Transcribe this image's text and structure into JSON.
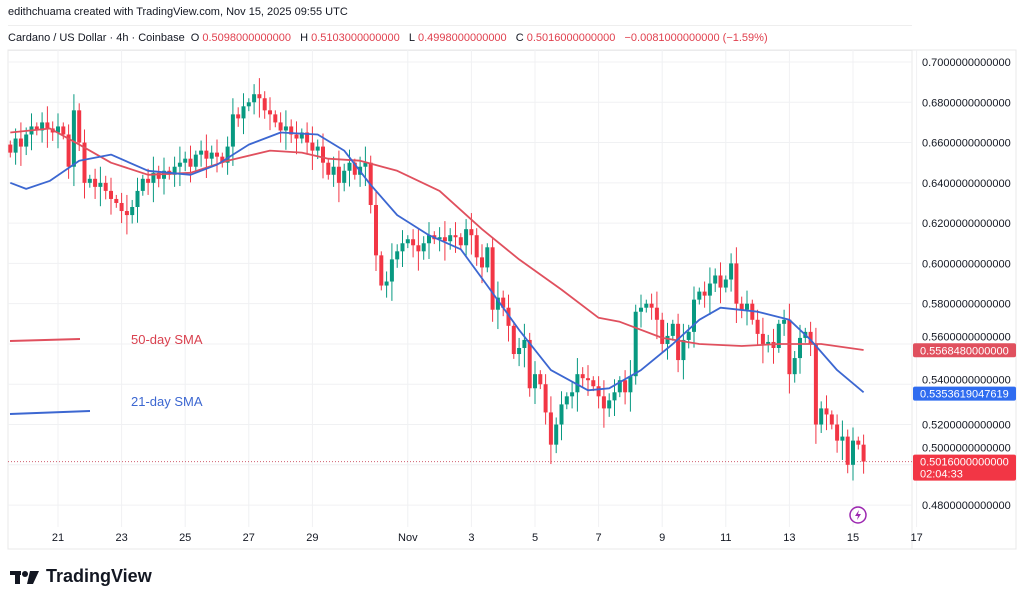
{
  "header": {
    "credit": "edithchuama created with TradingView.com, Nov 15, 2025 09:55 UTC",
    "symbol": "Cardano / US Dollar · 4h · Coinbase",
    "open_label": "O",
    "open": "0.5098000000000",
    "high_label": "H",
    "high": "0.5103000000000",
    "low_label": "L",
    "low": "0.4998000000000",
    "close_label": "C",
    "close": "0.5016000000000",
    "change": "−0.0081000000000 (−1.59%)"
  },
  "legend": {
    "sma50": "50-day SMA",
    "sma21": "21-day SMA"
  },
  "footer": {
    "brand": "TradingView"
  },
  "colors": {
    "up": "#089981",
    "down": "#f23645",
    "sma50": "#e0505e",
    "sma21": "#3c67d1",
    "last_price": "#f23645",
    "sma21_tag": "#2f6cf0"
  },
  "price_tags": {
    "sma50": "0.5568480000000",
    "sma21": "0.5353619047619",
    "last": "0.5016000000000",
    "countdown": "02:04:33"
  },
  "chart_data": {
    "type": "candlestick",
    "interval": "4h",
    "ylim": [
      0.47,
      0.705
    ],
    "y_ticks": [
      "0.7000000000000",
      "0.6800000000000",
      "0.6600000000000",
      "0.6400000000000",
      "0.6200000000000",
      "0.6000000000000",
      "0.5800000000000",
      "0.5600000000000",
      "0.5400000000000",
      "0.5200000000000",
      "0.5000000000000",
      "0.4800000000000"
    ],
    "x_ticks": [
      {
        "label": "21",
        "date": "2025-10-21"
      },
      {
        "label": "23",
        "date": "2025-10-23"
      },
      {
        "label": "25",
        "date": "2025-10-25"
      },
      {
        "label": "27",
        "date": "2025-10-27"
      },
      {
        "label": "29",
        "date": "2025-10-29"
      },
      {
        "label": "Nov",
        "date": "2025-11-01"
      },
      {
        "label": "3",
        "date": "2025-11-03"
      },
      {
        "label": "5",
        "date": "2025-11-05"
      },
      {
        "label": "7",
        "date": "2025-11-07"
      },
      {
        "label": "9",
        "date": "2025-11-09"
      },
      {
        "label": "11",
        "date": "2025-11-11"
      },
      {
        "label": "13",
        "date": "2025-11-13"
      },
      {
        "label": "15",
        "date": "2025-11-15"
      },
      {
        "label": "17",
        "date": "2025-11-17"
      }
    ],
    "first_candle": "2025-10-19T12:00",
    "closes": [
      0.655,
      0.662,
      0.658,
      0.664,
      0.668,
      0.666,
      0.67,
      0.667,
      0.665,
      0.668,
      0.664,
      0.648,
      0.676,
      0.66,
      0.64,
      0.642,
      0.638,
      0.64,
      0.636,
      0.632,
      0.63,
      0.626,
      0.624,
      0.628,
      0.636,
      0.642,
      0.64,
      0.645,
      0.642,
      0.646,
      0.644,
      0.648,
      0.65,
      0.652,
      0.648,
      0.654,
      0.656,
      0.652,
      0.655,
      0.653,
      0.65,
      0.658,
      0.674,
      0.672,
      0.678,
      0.68,
      0.684,
      0.682,
      0.676,
      0.674,
      0.67,
      0.666,
      0.668,
      0.664,
      0.662,
      0.665,
      0.66,
      0.656,
      0.658,
      0.65,
      0.644,
      0.648,
      0.64,
      0.646,
      0.65,
      0.644,
      0.648,
      0.65,
      0.629,
      0.604,
      0.589,
      0.591,
      0.602,
      0.606,
      0.61,
      0.612,
      0.609,
      0.606,
      0.61,
      0.614,
      0.612,
      0.613,
      0.611,
      0.614,
      0.613,
      0.609,
      0.617,
      0.614,
      0.603,
      0.598,
      0.608,
      0.577,
      0.583,
      0.578,
      0.569,
      0.555,
      0.558,
      0.562,
      0.538,
      0.545,
      0.54,
      0.526,
      0.51,
      0.52,
      0.53,
      0.534,
      0.536,
      0.545,
      0.543,
      0.542,
      0.539,
      0.534,
      0.528,
      0.532,
      0.536,
      0.542,
      0.536,
      0.544,
      0.576,
      0.578,
      0.58,
      0.578,
      0.572,
      0.56,
      0.564,
      0.57,
      0.552,
      0.562,
      0.566,
      0.582,
      0.586,
      0.584,
      0.59,
      0.594,
      0.588,
      0.592,
      0.6,
      0.58,
      0.577,
      0.58,
      0.572,
      0.565,
      0.56,
      0.561,
      0.558,
      0.57,
      0.572,
      0.545,
      0.553,
      0.563,
      0.566,
      0.56,
      0.52,
      0.528,
      0.525,
      0.52,
      0.512,
      0.514,
      0.5,
      0.512,
      0.51,
      0.5016
    ],
    "series": [
      {
        "name": "50-day SMA",
        "points": [
          [
            "2025-10-19T12:00",
            0.665
          ],
          [
            "2025-10-20T18:00",
            0.667
          ],
          [
            "2025-10-21T16:00",
            0.659
          ],
          [
            "2025-10-22T16:00",
            0.65
          ],
          [
            "2025-10-23T20:00",
            0.644
          ],
          [
            "2025-10-25T04:00",
            0.645
          ],
          [
            "2025-10-26T08:00",
            0.651
          ],
          [
            "2025-10-27T16:00",
            0.656
          ],
          [
            "2025-10-28T16:00",
            0.655
          ],
          [
            "2025-10-29T12:00",
            0.652
          ],
          [
            "2025-10-30T12:00",
            0.651
          ],
          [
            "2025-10-31T16:00",
            0.646
          ],
          [
            "2025-11-02T00:00",
            0.636
          ],
          [
            "2025-11-03T08:00",
            0.617
          ],
          [
            "2025-11-04T12:00",
            0.602
          ],
          [
            "2025-11-05T20:00",
            0.587
          ],
          [
            "2025-11-07T00:00",
            0.573
          ],
          [
            "2025-11-07T16:00",
            0.571
          ],
          [
            "2025-11-09T00:00",
            0.563
          ],
          [
            "2025-11-10T04:00",
            0.56
          ],
          [
            "2025-11-11T12:00",
            0.559
          ],
          [
            "2025-11-12T16:00",
            0.56
          ],
          [
            "2025-11-14T00:00",
            0.56
          ],
          [
            "2025-11-15T08:00",
            0.557
          ]
        ]
      },
      {
        "name": "21-day SMA",
        "points": [
          [
            "2025-10-19T12:00",
            0.64
          ],
          [
            "2025-10-20T00:00",
            0.637
          ],
          [
            "2025-10-20T18:00",
            0.641
          ],
          [
            "2025-10-21T16:00",
            0.651
          ],
          [
            "2025-10-22T16:00",
            0.654
          ],
          [
            "2025-10-23T20:00",
            0.646
          ],
          [
            "2025-10-25T04:00",
            0.644
          ],
          [
            "2025-10-26T00:00",
            0.649
          ],
          [
            "2025-10-27T00:00",
            0.659
          ],
          [
            "2025-10-28T00:00",
            0.665
          ],
          [
            "2025-10-29T04:00",
            0.664
          ],
          [
            "2025-10-30T00:00",
            0.656
          ],
          [
            "2025-10-30T20:00",
            0.639
          ],
          [
            "2025-10-31T16:00",
            0.624
          ],
          [
            "2025-11-01T16:00",
            0.614
          ],
          [
            "2025-11-02T16:00",
            0.607
          ],
          [
            "2025-11-03T12:00",
            0.589
          ],
          [
            "2025-11-04T12:00",
            0.567
          ],
          [
            "2025-11-05T12:00",
            0.547
          ],
          [
            "2025-11-06T16:00",
            0.537
          ],
          [
            "2025-11-07T08:00",
            0.538
          ],
          [
            "2025-11-08T08:00",
            0.547
          ],
          [
            "2025-11-09T08:00",
            0.56
          ],
          [
            "2025-11-10T04:00",
            0.572
          ],
          [
            "2025-11-10T20:00",
            0.578
          ],
          [
            "2025-11-12T00:00",
            0.576
          ],
          [
            "2025-11-13T00:00",
            0.572
          ],
          [
            "2025-11-13T16:00",
            0.562
          ],
          [
            "2025-11-14T12:00",
            0.547
          ],
          [
            "2025-11-15T08:00",
            0.536
          ]
        ]
      }
    ]
  }
}
